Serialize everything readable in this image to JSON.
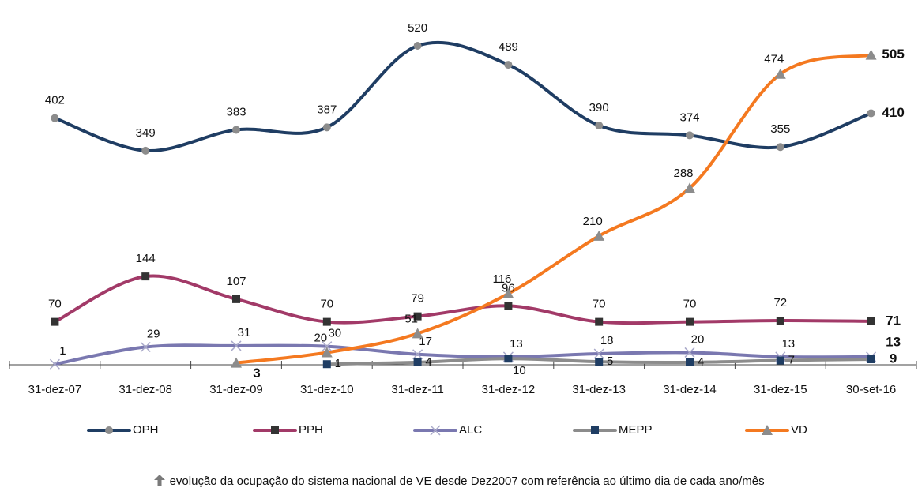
{
  "chart_data": {
    "type": "line",
    "categories": [
      "31-dez-07",
      "31-dez-08",
      "31-dez-09",
      "31-dez-10",
      "31-dez-11",
      "31-dez-12",
      "31-dez-13",
      "31-dez-14",
      "31-dez-15",
      "30-set-16"
    ],
    "series": [
      {
        "name": "OPH",
        "color": "#1f3d63",
        "marker": "circle",
        "marker_color": "#8c8c8c",
        "values": [
          402,
          349,
          383,
          387,
          520,
          489,
          390,
          374,
          355,
          410
        ]
      },
      {
        "name": "PPH",
        "color": "#a23a68",
        "marker": "square",
        "marker_color": "#333333",
        "values": [
          70,
          144,
          107,
          70,
          79,
          96,
          70,
          70,
          72,
          71
        ]
      },
      {
        "name": "ALC",
        "color": "#7a78b0",
        "marker": "x",
        "marker_color": "#a9a9c9",
        "values": [
          1,
          29,
          31,
          30,
          17,
          13,
          18,
          20,
          13,
          13
        ]
      },
      {
        "name": "MEPP",
        "color": "#8c8c8c",
        "marker": "square",
        "marker_color": "#1f3d63",
        "values": [
          null,
          null,
          null,
          1,
          4,
          10,
          5,
          4,
          7,
          9
        ]
      },
      {
        "name": "VD",
        "color": "#f47920",
        "marker": "triangle",
        "marker_color": "#8c8c8c",
        "values": [
          null,
          null,
          3,
          20,
          51,
          116,
          210,
          288,
          474,
          505
        ]
      }
    ],
    "ylim": [
      0,
      520
    ],
    "caption": "evolução da ocupação do sistema nacional de VE desde Dez2007 com referência ao último dia de cada ano/mês"
  }
}
